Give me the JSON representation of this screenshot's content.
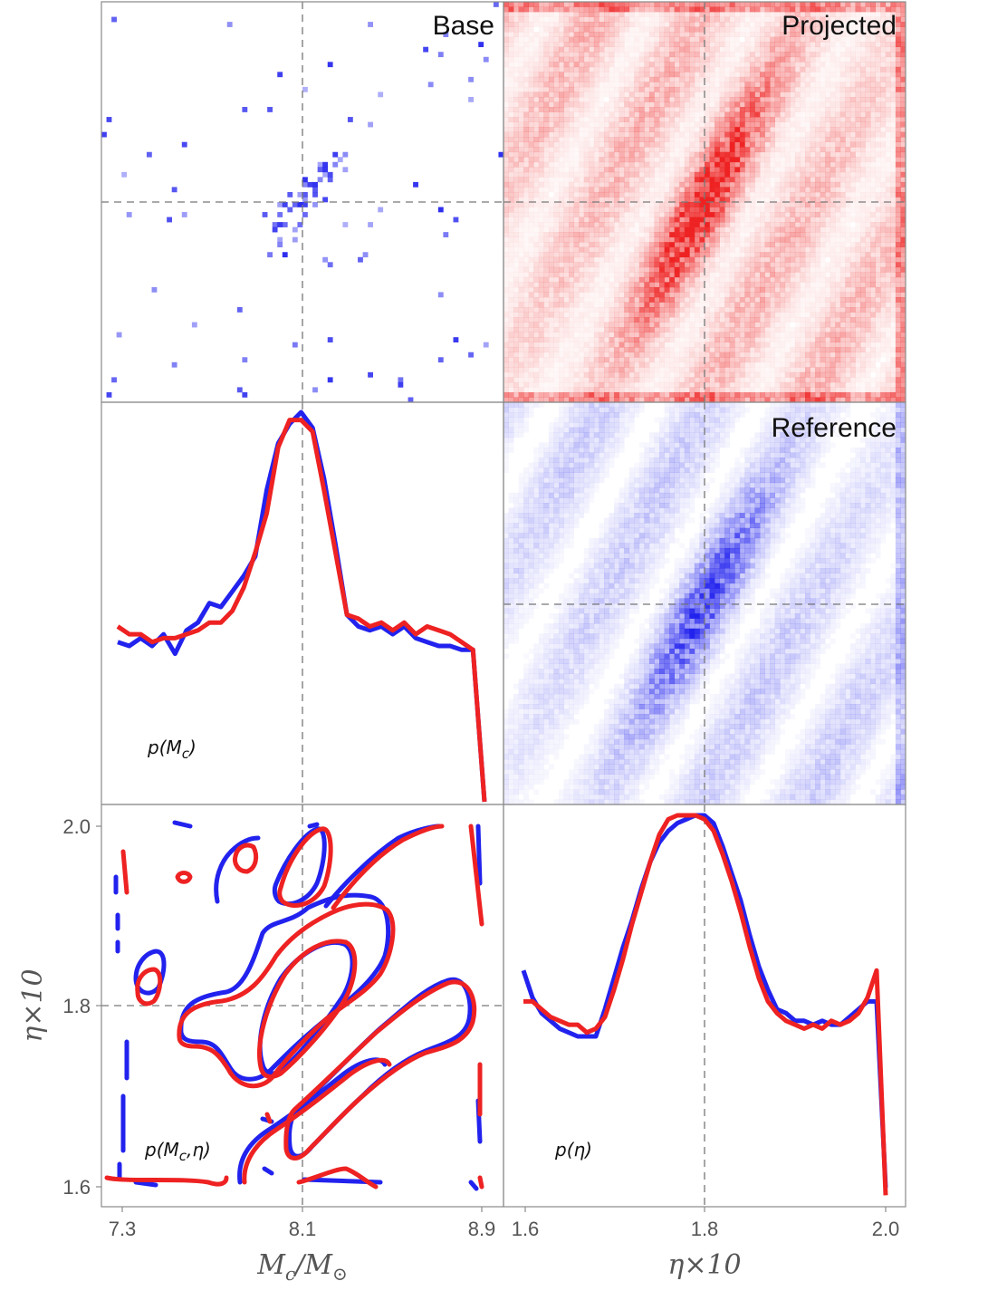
{
  "colors": {
    "base": "#2222ee",
    "projected": "#ee2222",
    "reference": "#2222ee",
    "truth_line": "#777777",
    "frame": "#8a8a8a"
  },
  "chart_data": [
    {
      "type": "heatmap",
      "panel": "top-left",
      "title": "Base",
      "color": "#2222ee",
      "x_range": [
        7.3,
        8.9
      ],
      "y_range": [
        1.6,
        2.0
      ],
      "truth": {
        "x": 8.1,
        "y": 1.8
      }
    },
    {
      "type": "heatmap",
      "panel": "top-right",
      "title": "Projected",
      "color": "#ee2222",
      "x_range": [
        1.6,
        2.0
      ],
      "y_range": [
        7.3,
        8.9
      ],
      "truth": {
        "x": 1.8,
        "y": 8.1
      }
    },
    {
      "type": "heatmap",
      "panel": "middle-right",
      "title": "Reference",
      "color": "#2222ee",
      "x_range": [
        1.6,
        2.0
      ],
      "y_range": [
        7.3,
        8.9
      ],
      "truth": {
        "x": 1.8,
        "y": 8.1
      }
    },
    {
      "type": "line",
      "panel": "middle-left",
      "label": "p(M_c)",
      "label_main": "p(M",
      "label_sub": "c",
      "label_tail": ")",
      "x_range": [
        7.3,
        8.9
      ],
      "y_range": [
        0,
        1
      ],
      "truth_x": 8.1,
      "series": [
        {
          "color": "#2222ee",
          "x": [
            7.3,
            7.35,
            7.4,
            7.45,
            7.5,
            7.55,
            7.6,
            7.65,
            7.7,
            7.75,
            7.8,
            7.85,
            7.9,
            7.95,
            8.0,
            8.05,
            8.1,
            8.15,
            8.2,
            8.25,
            8.3,
            8.35,
            8.4,
            8.45,
            8.5,
            8.55,
            8.6,
            8.65,
            8.7,
            8.75,
            8.8,
            8.85,
            8.9
          ],
          "y": [
            0.41,
            0.4,
            0.42,
            0.4,
            0.43,
            0.38,
            0.44,
            0.46,
            0.51,
            0.5,
            0.54,
            0.58,
            0.63,
            0.8,
            0.92,
            0.97,
            1.0,
            0.96,
            0.83,
            0.66,
            0.48,
            0.45,
            0.44,
            0.45,
            0.43,
            0.45,
            0.42,
            0.41,
            0.4,
            0.4,
            0.39,
            0.39,
            0.0
          ]
        },
        {
          "color": "#ee2222",
          "x": [
            7.3,
            7.35,
            7.4,
            7.45,
            7.5,
            7.55,
            7.6,
            7.65,
            7.7,
            7.75,
            7.8,
            7.85,
            7.9,
            7.95,
            8.0,
            8.05,
            8.1,
            8.15,
            8.2,
            8.25,
            8.3,
            8.35,
            8.4,
            8.45,
            8.5,
            8.55,
            8.6,
            8.65,
            8.7,
            8.75,
            8.8,
            8.85,
            8.9
          ],
          "y": [
            0.45,
            0.43,
            0.43,
            0.41,
            0.42,
            0.42,
            0.43,
            0.44,
            0.46,
            0.46,
            0.49,
            0.55,
            0.64,
            0.74,
            0.91,
            0.98,
            0.98,
            0.95,
            0.8,
            0.64,
            0.48,
            0.47,
            0.45,
            0.46,
            0.44,
            0.46,
            0.43,
            0.45,
            0.44,
            0.43,
            0.41,
            0.39,
            0.0
          ]
        }
      ]
    },
    {
      "type": "contour",
      "panel": "bottom-left",
      "label": "p(M_c,η)",
      "label_main": "p(M",
      "label_sub": "c",
      "label_tail": ",η)",
      "x_ticks": [
        "7.3",
        "8.1",
        "8.9"
      ],
      "x_tick_values": [
        7.3,
        8.1,
        8.9
      ],
      "y_ticks": [
        "2.0",
        "1.8",
        "1.6"
      ],
      "y_tick_values": [
        2.0,
        1.8,
        1.6
      ],
      "x_range": [
        7.25,
        8.95
      ],
      "y_range": [
        1.585,
        2.022
      ],
      "truth": {
        "x": 8.1,
        "y": 1.8
      },
      "xlabel_main": "M",
      "xlabel_sub": "c",
      "xlabel_mid": "/M",
      "xlabel_sub2": "⊙",
      "ylabel": "η×10"
    },
    {
      "type": "line",
      "panel": "bottom-right",
      "label": "p(η)",
      "x_ticks": [
        "1.6",
        "1.8",
        "2.0"
      ],
      "x_tick_values": [
        1.6,
        1.8,
        2.0
      ],
      "x_range": [
        1.59,
        2.01
      ],
      "y_range": [
        0,
        1
      ],
      "truth_x": 1.8,
      "xlabel": "η×10",
      "series": [
        {
          "color": "#2222ee",
          "x": [
            1.6,
            1.61,
            1.62,
            1.63,
            1.64,
            1.65,
            1.66,
            1.67,
            1.68,
            1.69,
            1.7,
            1.71,
            1.72,
            1.73,
            1.74,
            1.75,
            1.76,
            1.77,
            1.78,
            1.79,
            1.8,
            1.81,
            1.82,
            1.83,
            1.84,
            1.85,
            1.86,
            1.87,
            1.88,
            1.89,
            1.9,
            1.91,
            1.92,
            1.93,
            1.94,
            1.95,
            1.96,
            1.97,
            1.98,
            1.99,
            2.0
          ],
          "y": [
            0.6,
            0.53,
            0.49,
            0.47,
            0.45,
            0.44,
            0.43,
            0.43,
            0.43,
            0.5,
            0.58,
            0.66,
            0.73,
            0.81,
            0.88,
            0.93,
            0.96,
            0.98,
            0.99,
            1.0,
            1.0,
            0.98,
            0.92,
            0.85,
            0.78,
            0.69,
            0.61,
            0.55,
            0.5,
            0.49,
            0.47,
            0.47,
            0.46,
            0.47,
            0.46,
            0.46,
            0.48,
            0.5,
            0.52,
            0.52,
            0.04
          ]
        },
        {
          "color": "#ee2222",
          "x": [
            1.6,
            1.61,
            1.62,
            1.63,
            1.64,
            1.65,
            1.66,
            1.67,
            1.68,
            1.69,
            1.7,
            1.71,
            1.72,
            1.73,
            1.74,
            1.75,
            1.76,
            1.77,
            1.78,
            1.79,
            1.8,
            1.81,
            1.82,
            1.83,
            1.84,
            1.85,
            1.86,
            1.87,
            1.88,
            1.89,
            1.9,
            1.91,
            1.92,
            1.93,
            1.94,
            1.95,
            1.96,
            1.97,
            1.98,
            1.99,
            2.0
          ],
          "y": [
            0.52,
            0.52,
            0.5,
            0.48,
            0.47,
            0.46,
            0.46,
            0.44,
            0.45,
            0.48,
            0.55,
            0.63,
            0.72,
            0.8,
            0.88,
            0.95,
            0.99,
            1.0,
            1.0,
            1.0,
            0.99,
            0.96,
            0.9,
            0.83,
            0.75,
            0.66,
            0.58,
            0.52,
            0.49,
            0.47,
            0.46,
            0.45,
            0.46,
            0.45,
            0.47,
            0.46,
            0.47,
            0.49,
            0.53,
            0.6,
            0.02
          ]
        }
      ]
    }
  ]
}
